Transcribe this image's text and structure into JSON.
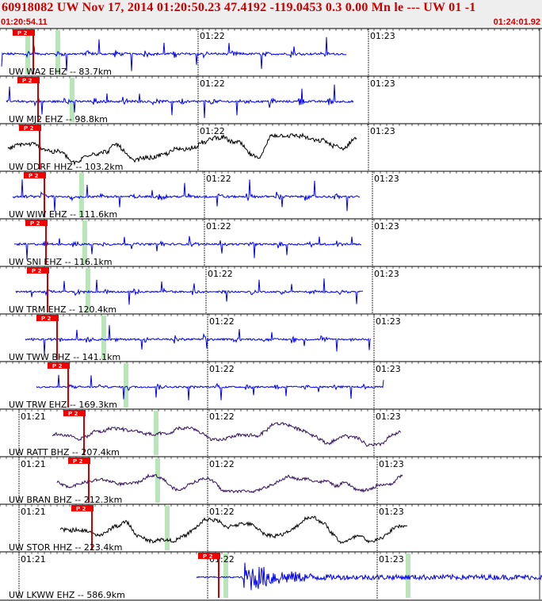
{
  "header": {
    "title": "60918082 UW Nov 17, 2014 01:20:50.23    47.4192 -119.0453  0.3 0.00 Mn le --- UW 01  -1",
    "start_time": "01:20:54.11",
    "end_time": "01:24:01.92"
  },
  "colors": {
    "header_bg": "#eeeeee",
    "header_text": "#cc0000",
    "pick_flag": "#ee0000",
    "pick_line": "#cc0000",
    "marker_band": "#b9e6b9",
    "trace_blue": "#0000ee",
    "trace_black": "#000000",
    "trace_purple": "#33105a"
  },
  "time_labels": [
    "01:21",
    "01:22",
    "01:23"
  ],
  "pick_label": "P 2",
  "traces": [
    {
      "label": "UW WA2 EHZ -- 83.7km",
      "color": "#0000ee",
      "style": "spiky",
      "amp": 0.9,
      "pick": 0.26
    },
    {
      "label": "UW MJ2 EHZ -- 98.8km",
      "color": "#0000ee",
      "style": "spiky",
      "amp": 0.9,
      "pick": 0.35
    },
    {
      "label": "UW DDRF HHZ -- 103.2km",
      "color": "#000000",
      "style": "wavy",
      "amp": 0.9,
      "pick": 0.31
    },
    {
      "label": "UW WIW EHZ -- 111.6km",
      "color": "#0000ee",
      "style": "spiky",
      "amp": 0.9,
      "pick": 0.36
    },
    {
      "label": "UW SNI EHZ -- 116.1km",
      "color": "#0000ee",
      "style": "spiky",
      "amp": 0.8,
      "pick": 0.37
    },
    {
      "label": "UW TRM EHZ -- 120.4km",
      "color": "#0000ee",
      "style": "spiky",
      "amp": 0.7,
      "pick": 0.4
    },
    {
      "label": "UW TWW BHZ -- 141.1km",
      "color": "#0000ee",
      "style": "spiky",
      "amp": 0.8,
      "pick": 0.45
    },
    {
      "label": "UW TRW EHZ -- 169.3km",
      "color": "#0000ee",
      "style": "spiky",
      "amp": 0.7,
      "pick": 0.48
    },
    {
      "label": "UW RATT BHZ -- 207.4km",
      "color": "#33105a",
      "style": "wavy",
      "amp": 0.7,
      "pick": 0.53
    },
    {
      "label": "UW BRAN BHZ -- 212.3km",
      "color": "#33105a",
      "style": "wavy",
      "amp": 0.6,
      "pick": 0.55
    },
    {
      "label": "UW STOR HHZ -- 223.4km",
      "color": "#000000",
      "style": "wavy",
      "amp": 0.8,
      "pick": 0.57
    },
    {
      "label": "UW LKWW EHZ -- 586.9km",
      "color": "#0000ee",
      "style": "dense",
      "amp": 0.9,
      "pick": 0.85
    }
  ]
}
